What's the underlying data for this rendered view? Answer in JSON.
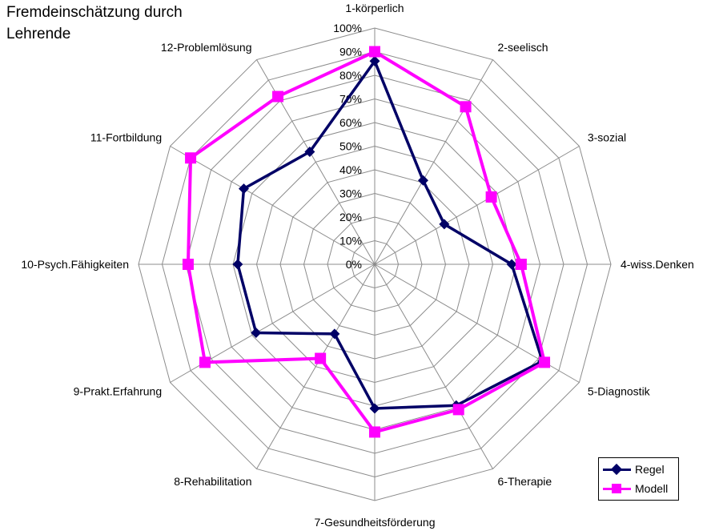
{
  "chart_data": {
    "type": "radar",
    "title": "Fremdeinschätzung durch Lehrende",
    "categories": [
      "1-körperlich",
      "2-seelisch",
      "3-sozial",
      "4-wiss.Denken",
      "5-Diagnostik",
      "6-Therapie",
      "7-Gesundheitsförderung",
      "8-Rehabilitation",
      "9-Prakt.Erfahrung",
      "10-Psych.Fähigkeiten",
      "11-Fortbildung",
      "12-Problemlösung"
    ],
    "radial_ticks": [
      "0%",
      "10%",
      "20%",
      "30%",
      "40%",
      "50%",
      "60%",
      "70%",
      "80%",
      "90%",
      "100%"
    ],
    "rlim": [
      0,
      100
    ],
    "grid": true,
    "legend_position": "bottom-right",
    "series": [
      {
        "name": "Regel",
        "color": "#000066",
        "marker": "diamond",
        "values": [
          86,
          41,
          34,
          58,
          82,
          69,
          61,
          34,
          58,
          58,
          64,
          55
        ]
      },
      {
        "name": "Modell",
        "color": "#ff00ff",
        "marker": "square",
        "values": [
          90,
          77,
          57,
          62,
          83,
          71,
          71,
          46,
          83,
          79,
          90,
          82
        ]
      }
    ]
  }
}
